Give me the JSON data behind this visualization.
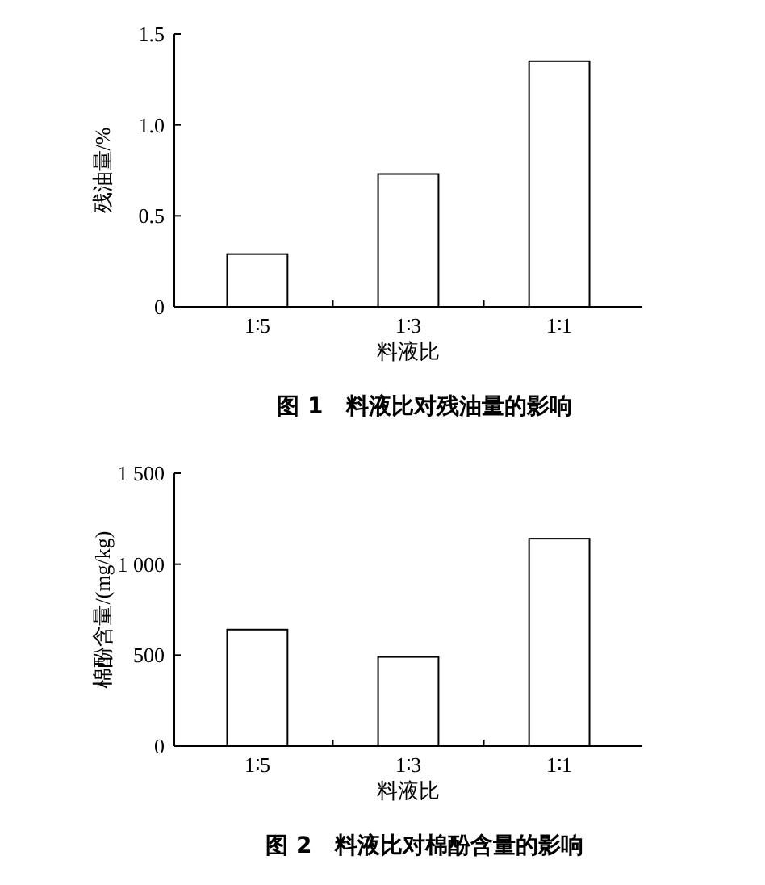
{
  "chart_data": [
    {
      "type": "bar",
      "title": "图 1　料液比对残油量的影响",
      "xlabel": "料液比",
      "ylabel": "残油量/%",
      "categories": [
        "1∶5",
        "1∶3",
        "1∶1"
      ],
      "values": [
        0.29,
        0.73,
        1.35
      ],
      "color": "#ffffff",
      "ylim": [
        0,
        1.5
      ],
      "yticks": [
        0,
        0.5,
        {
          "value": 1,
          "label": "1.0"
        },
        1.5
      ],
      "grid": false
    },
    {
      "type": "bar",
      "title": "图 2　料液比对棉酚含量的影响",
      "xlabel": "料液比",
      "ylabel": "棉酚含量/(mg/kg)",
      "categories": [
        "1∶5",
        "1∶3",
        "1∶1"
      ],
      "values": [
        640,
        490,
        1140
      ],
      "color": "#ffffff",
      "ylim": [
        0,
        1500
      ],
      "yticks": [
        0,
        500,
        {
          "value": 1000,
          "label": "1 000"
        },
        {
          "value": 1500,
          "label": "1 500"
        }
      ],
      "grid": false
    }
  ]
}
